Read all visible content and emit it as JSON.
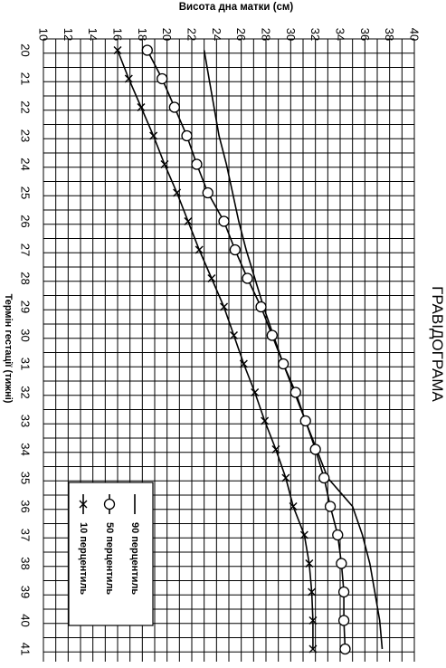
{
  "chart_data": {
    "type": "line",
    "title": "ГРАВІДОГРАМА",
    "xlabel": "Термін гестації (тижні)",
    "ylabel": "Висота дна матки (см)",
    "x": [
      20,
      21,
      22,
      23,
      24,
      25,
      26,
      27,
      28,
      29,
      30,
      31,
      32,
      33,
      34,
      35,
      36,
      37,
      38,
      39,
      40,
      41
    ],
    "xlim": [
      20,
      41
    ],
    "ylim": [
      10,
      40
    ],
    "y_tick_labels": [
      "10",
      "12",
      "14",
      "16",
      "18",
      "20",
      "22",
      "24",
      "26",
      "28",
      "30",
      "32",
      "34",
      "36",
      "38",
      "40"
    ],
    "grid": true,
    "legend_position": "bottom-left",
    "series": [
      {
        "name": "90 перцентиль",
        "marker": "none",
        "values": [
          23.0,
          23.4,
          23.8,
          24.2,
          24.8,
          25.3,
          25.8,
          26.4,
          27.1,
          27.8,
          28.6,
          29.4,
          30.3,
          31.2,
          32.1,
          33.0,
          35.0,
          35.8,
          36.4,
          36.8,
          37.2,
          37.4
        ]
      },
      {
        "name": "50 перцентиль",
        "marker": "circle",
        "values": [
          18.4,
          19.6,
          20.6,
          21.6,
          22.4,
          23.3,
          24.6,
          25.5,
          26.5,
          27.6,
          28.5,
          29.4,
          30.4,
          31.2,
          32.0,
          32.7,
          33.2,
          33.8,
          34.1,
          34.3,
          34.3,
          34.4
        ]
      },
      {
        "name": "10 перцентиль",
        "marker": "cross",
        "values": [
          16.0,
          16.9,
          17.9,
          18.9,
          19.8,
          20.8,
          21.7,
          22.6,
          23.6,
          24.6,
          25.4,
          26.2,
          27.1,
          27.9,
          28.8,
          29.6,
          30.2,
          31.1,
          31.5,
          31.7,
          31.8,
          31.8
        ]
      }
    ]
  }
}
